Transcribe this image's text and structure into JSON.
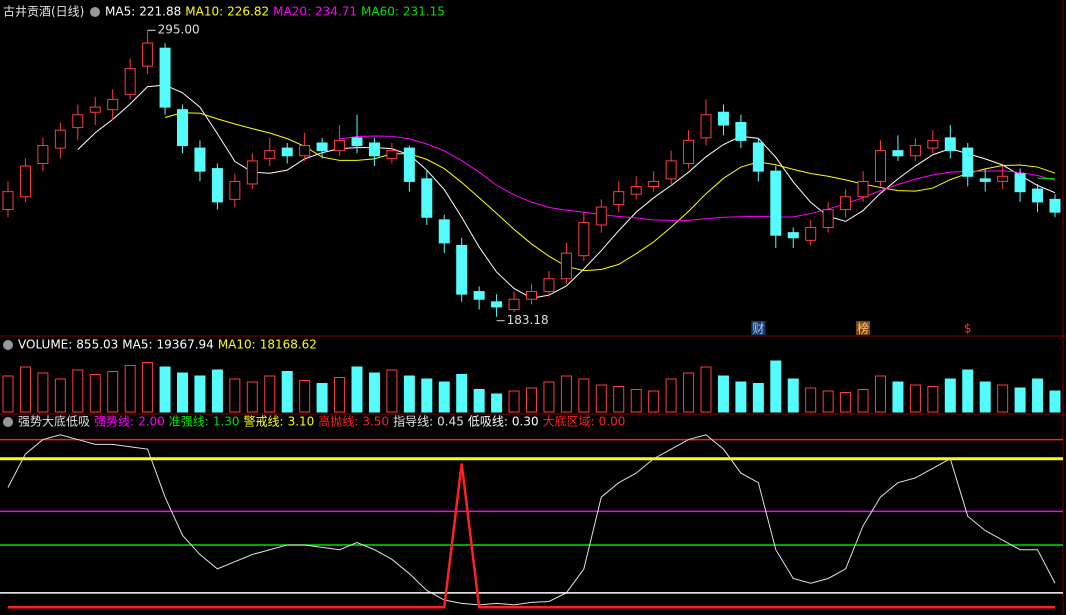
{
  "chart_data": [
    {
      "type": "candlestick",
      "title": "古井贡酒(日线)",
      "ylim": [
        178,
        299
      ],
      "up_color": "#ff3c3c",
      "down_color": "#54fcfc",
      "legend": [
        {
          "name": "MA5:",
          "value": 221.88,
          "color": "#ffffff"
        },
        {
          "name": "MA10:",
          "value": 226.82,
          "color": "#ffff00"
        },
        {
          "name": "MA20:",
          "value": 234.71,
          "color": "#ff00ff"
        },
        {
          "name": "MA60:",
          "value": 231.15,
          "color": "#00e000"
        }
      ],
      "annotations": [
        {
          "value": 295,
          "label": "295.00"
        },
        {
          "value": 183.18,
          "label": "183.18"
        }
      ],
      "events": [
        "财",
        "榜",
        "$"
      ],
      "candles": [
        [
          225,
          236,
          222,
          232
        ],
        [
          230,
          245,
          228,
          242
        ],
        [
          243,
          253,
          240,
          250
        ],
        [
          249,
          259,
          245,
          256
        ],
        [
          257,
          266,
          252,
          262
        ],
        [
          263,
          269,
          258,
          265
        ],
        [
          264,
          272,
          260,
          268
        ],
        [
          270,
          284,
          268,
          280
        ],
        [
          281,
          295,
          278,
          290
        ],
        [
          288,
          290,
          262,
          265
        ],
        [
          264,
          266,
          247,
          250
        ],
        [
          249,
          252,
          236,
          240
        ],
        [
          241,
          243,
          225,
          228
        ],
        [
          229,
          239,
          226,
          236
        ],
        [
          235,
          247,
          233,
          244
        ],
        [
          245,
          253,
          242,
          248
        ],
        [
          249,
          251,
          243,
          246
        ],
        [
          246,
          255,
          244,
          250
        ],
        [
          251,
          253,
          245,
          248
        ],
        [
          248,
          258,
          246,
          252
        ],
        [
          253,
          262,
          247,
          250
        ],
        [
          251,
          253,
          242,
          246
        ],
        [
          245,
          251,
          243,
          248
        ],
        [
          249,
          250,
          232,
          236
        ],
        [
          237,
          240,
          219,
          222
        ],
        [
          221,
          223,
          208,
          212
        ],
        [
          211,
          214,
          189,
          192
        ],
        [
          193,
          195,
          186,
          190
        ],
        [
          189,
          192,
          183.18,
          187
        ],
        [
          186,
          193,
          185,
          190
        ],
        [
          190,
          196,
          188,
          193
        ],
        [
          193,
          201,
          191,
          198
        ],
        [
          198,
          212,
          196,
          208
        ],
        [
          207,
          224,
          205,
          220
        ],
        [
          219,
          229,
          216,
          226
        ],
        [
          227,
          236,
          224,
          232
        ],
        [
          231,
          238,
          229,
          234
        ],
        [
          234,
          240,
          232,
          236
        ],
        [
          237,
          248,
          235,
          244
        ],
        [
          243,
          256,
          241,
          252
        ],
        [
          253,
          268,
          250,
          262
        ],
        [
          263,
          266,
          254,
          258
        ],
        [
          259,
          262,
          249,
          252
        ],
        [
          251,
          253,
          236,
          240
        ],
        [
          240,
          242,
          210,
          215
        ],
        [
          216,
          218,
          210,
          214
        ],
        [
          213,
          221,
          211,
          218
        ],
        [
          218,
          228,
          216,
          225
        ],
        [
          225,
          233,
          222,
          230
        ],
        [
          230,
          240,
          228,
          236
        ],
        [
          236,
          252,
          234,
          248
        ],
        [
          248,
          254,
          244,
          246
        ],
        [
          246,
          253,
          244,
          250
        ],
        [
          249,
          256,
          247,
          252
        ],
        [
          253,
          258,
          245,
          248
        ],
        [
          249,
          251,
          234,
          238
        ],
        [
          237,
          241,
          232,
          236
        ],
        [
          236,
          242,
          233,
          238
        ],
        [
          239,
          241,
          228,
          232
        ],
        [
          233,
          235,
          224,
          228
        ],
        [
          229,
          231,
          222,
          224
        ]
      ]
    },
    {
      "type": "bar",
      "ylim": [
        0,
        40000
      ],
      "legend": [
        {
          "name": "VOLUME:",
          "value": 855.03,
          "color": "#ffffff"
        },
        {
          "name": "MA5:",
          "value": 19367.94,
          "color": "#ffffff"
        },
        {
          "name": "MA10:",
          "value": 18168.62,
          "color": "#ffff00"
        }
      ],
      "values": [
        24000,
        30000,
        26000,
        22000,
        28000,
        25000,
        27000,
        31000,
        33000,
        30000,
        26000,
        24000,
        28000,
        22000,
        20000,
        24000,
        27000,
        21000,
        19000,
        23000,
        30000,
        26000,
        28000,
        24000,
        22000,
        20000,
        25000,
        15000,
        12000,
        14000,
        16000,
        20000,
        24000,
        22000,
        18000,
        17000,
        15000,
        14000,
        22000,
        26000,
        30000,
        24000,
        20000,
        19000,
        34000,
        22000,
        16000,
        14000,
        13000,
        15000,
        24000,
        20000,
        18000,
        17000,
        22000,
        28000,
        20000,
        18000,
        16000,
        22000,
        14000
      ]
    },
    {
      "type": "line",
      "title": "强势大底低吸",
      "ylim": [
        -0.1,
        3.7
      ],
      "series": [
        {
          "name": "强势线:",
          "value": {
            "value": 2,
            "label": "2.00"
          },
          "color": "#ff00ff"
        },
        {
          "name": "准强线:",
          "value": {
            "value": 1.3,
            "label": "1.30"
          },
          "color": "#00e000"
        },
        {
          "name": "警戒线:",
          "value": {
            "value": 3.1,
            "label": "3.10"
          },
          "color": "#ffff00"
        },
        {
          "name": "高抛线:",
          "value": {
            "value": 3.5,
            "label": "3.50"
          },
          "color": "#ff2020"
        },
        {
          "name": "指导线:",
          "value": 0.45,
          "color": "#e0e0e0",
          "values": [
            2.5,
            3.2,
            3.5,
            3.6,
            3.5,
            3.4,
            3.4,
            3.35,
            3.3,
            2.3,
            1.5,
            1.1,
            0.8,
            0.95,
            1.1,
            1.2,
            1.3,
            1.3,
            1.25,
            1.2,
            1.35,
            1.2,
            1.0,
            0.7,
            0.35,
            0.15,
            0.08,
            0.05,
            0.08,
            0.05,
            0.1,
            0.12,
            0.3,
            0.8,
            2.3,
            2.6,
            2.8,
            3.1,
            3.3,
            3.5,
            3.6,
            3.3,
            2.8,
            2.6,
            1.2,
            0.6,
            0.5,
            0.6,
            0.8,
            1.7,
            2.3,
            2.6,
            2.7,
            2.9,
            3.1,
            1.9,
            1.6,
            1.4,
            1.2,
            1.2,
            0.5
          ]
        },
        {
          "name": "低吸线:",
          "value": {
            "value": 0.3,
            "label": "0.30"
          },
          "color": "#ffffff"
        },
        {
          "name": "大底区域:",
          "value": {
            "value": 0,
            "label": "0.00"
          },
          "color": "#ff2020",
          "values": [
            0,
            0,
            0,
            0,
            0,
            0,
            0,
            0,
            0,
            0,
            0,
            0,
            0,
            0,
            0,
            0,
            0,
            0,
            0,
            0,
            0,
            0,
            0,
            0,
            0,
            0,
            3.0,
            0,
            0,
            0,
            0,
            0,
            0,
            0,
            0,
            0,
            0,
            0,
            0,
            0,
            0,
            0,
            0,
            0,
            0,
            0,
            0,
            0,
            0,
            0,
            0,
            0,
            0,
            0,
            0,
            0,
            0,
            0,
            0,
            0,
            0
          ]
        }
      ]
    }
  ]
}
